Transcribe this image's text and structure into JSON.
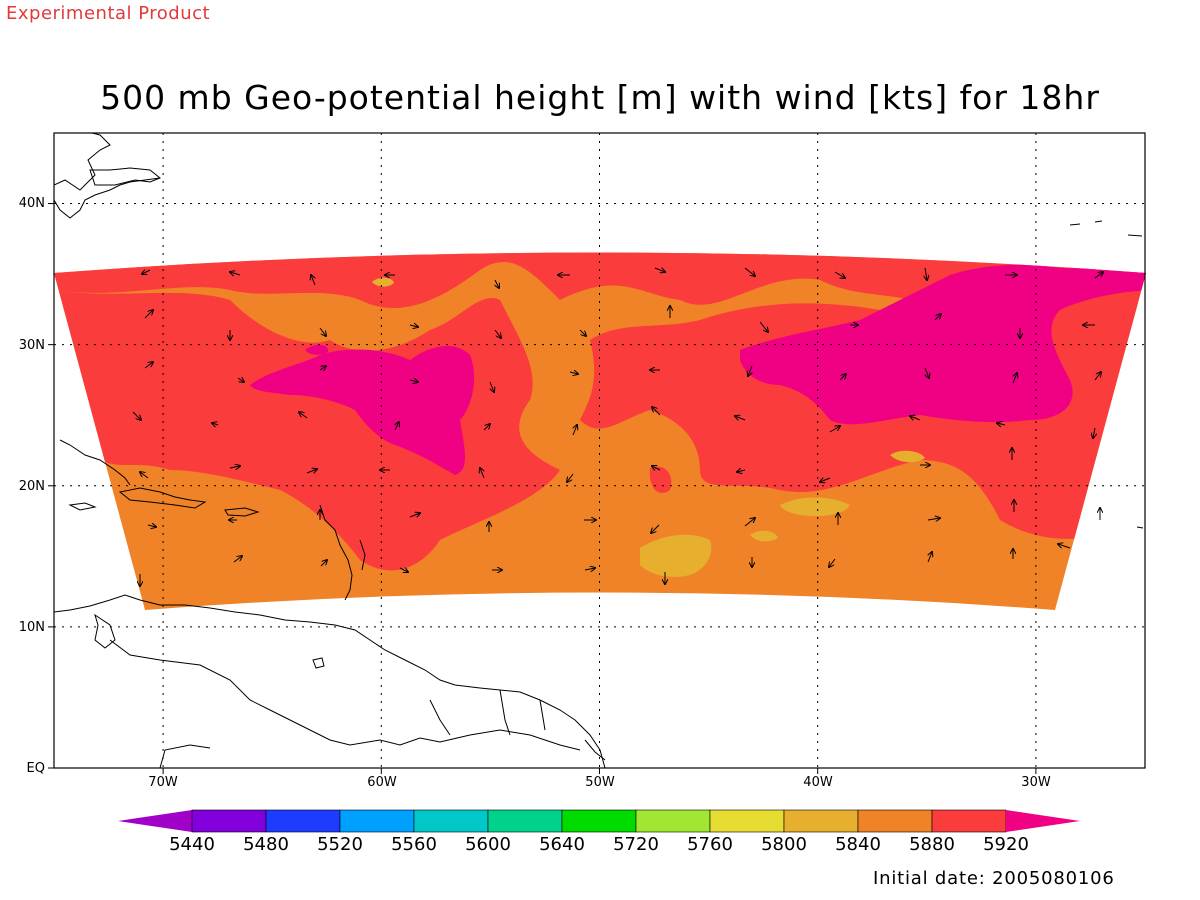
{
  "header": {
    "product_label": "Experimental Product",
    "title": "500 mb Geo-potential height [m] with wind [kts] for 18hr"
  },
  "footer": {
    "initial_date": "Initial date: 2005080106"
  },
  "axes": {
    "lat_ticks": [
      {
        "label": "40N",
        "value": 40
      },
      {
        "label": "30N",
        "value": 30
      },
      {
        "label": "20N",
        "value": 20
      },
      {
        "label": "10N",
        "value": 10
      },
      {
        "label": "EQ",
        "value": 0
      }
    ],
    "lon_ticks": [
      {
        "label": "70W",
        "value": -70
      },
      {
        "label": "60W",
        "value": -60
      },
      {
        "label": "50W",
        "value": -50
      },
      {
        "label": "40W",
        "value": -40
      },
      {
        "label": "30W",
        "value": -30
      }
    ],
    "lat_range": [
      0,
      45
    ],
    "lon_range": [
      -75,
      -25
    ],
    "grid": "dotted"
  },
  "colorbar": {
    "levels": [
      "5440",
      "5480",
      "5520",
      "5560",
      "5600",
      "5640",
      "5720",
      "5760",
      "5800",
      "5840",
      "5880",
      "5920"
    ],
    "colors": [
      "#a000c8",
      "#8200dc",
      "#1e3cff",
      "#00a0ff",
      "#00c8c8",
      "#00d28c",
      "#00dc00",
      "#a0e632",
      "#e6dc32",
      "#e6af2d",
      "#f08228",
      "#fa3c3c",
      "#f00082"
    ]
  },
  "field_colors": {
    "c5840": "#e6af2d",
    "c5880": "#f08228",
    "c5920": "#fa3c3c",
    "c5960": "#f00082"
  }
}
